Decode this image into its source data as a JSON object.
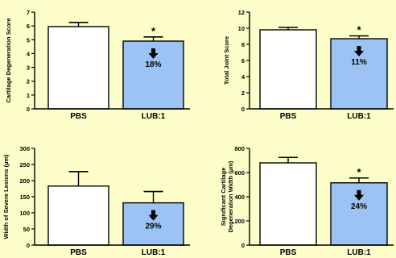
{
  "colors": {
    "background": "#fdfdc9",
    "bar_pbs": "#ffffff",
    "bar_lub": "#9dc3f5",
    "axis": "#000000"
  },
  "chart_data": [
    {
      "type": "bar",
      "categories": [
        "PBS",
        "LUB:1"
      ],
      "values": [
        5.95,
        4.9
      ],
      "errors": [
        0.3,
        0.3
      ],
      "ylabel": "Cartilage Degeneration Score",
      "ylim": [
        0,
        7
      ],
      "yticks": [
        "0",
        "1",
        "2",
        "3",
        "4",
        "5",
        "6",
        "7"
      ],
      "significance": "*",
      "reduction_label": "18%",
      "reduction_icon": "down-arrow-icon"
    },
    {
      "type": "bar",
      "categories": [
        "PBS",
        "LUB:1"
      ],
      "values": [
        9.8,
        8.7
      ],
      "errors": [
        0.3,
        0.35
      ],
      "ylabel": "Total Joint Score",
      "ylim": [
        0,
        12
      ],
      "yticks": [
        "0",
        "2",
        "4",
        "6",
        "8",
        "10",
        "12"
      ],
      "significance": "*",
      "reduction_label": "11%",
      "reduction_icon": "down-arrow-icon"
    },
    {
      "type": "bar",
      "categories": [
        "PBS",
        "LUB:1"
      ],
      "values": [
        183,
        131
      ],
      "errors": [
        45,
        35
      ],
      "ylabel": "Width of Severe Lesions (µm)",
      "ylim": [
        0,
        300
      ],
      "yticks": [
        "0",
        "50",
        "100",
        "150",
        "200",
        "250",
        "300"
      ],
      "significance": "",
      "reduction_label": "29%",
      "reduction_icon": "down-arrow-icon"
    },
    {
      "type": "bar",
      "categories": [
        "PBS",
        "LUB:1"
      ],
      "values": [
        680,
        515
      ],
      "errors": [
        45,
        40
      ],
      "ylabel": [
        "Significant Cartilage",
        "Degeneration Width (µm)"
      ],
      "ylim": [
        0,
        800
      ],
      "yticks": [
        "0",
        "200",
        "400",
        "600",
        "800"
      ],
      "significance": "*",
      "reduction_label": "24%",
      "reduction_icon": "down-arrow-icon"
    }
  ]
}
